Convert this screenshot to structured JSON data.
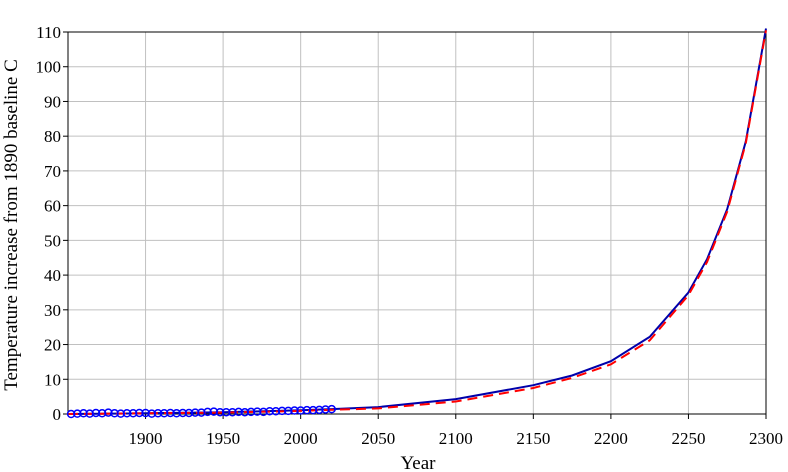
{
  "chart_data": {
    "type": "line",
    "title": "",
    "xlabel": "Year",
    "ylabel": "Temperature increase from  1890 baseline C",
    "xlim": [
      1850,
      2300
    ],
    "ylim": [
      0,
      110
    ],
    "x_ticks": [
      1900,
      1950,
      2000,
      2050,
      2100,
      2150,
      2200,
      2250,
      2300
    ],
    "y_ticks": [
      0,
      10,
      20,
      30,
      40,
      50,
      60,
      70,
      80,
      90,
      100,
      110
    ],
    "grid": true,
    "legend": "none",
    "series": [
      {
        "kind": "scatter",
        "color": "#0000ff",
        "marker": "open-circle",
        "x": [
          1852,
          1856,
          1860,
          1864,
          1868,
          1872,
          1876,
          1880,
          1884,
          1888,
          1892,
          1896,
          1900,
          1904,
          1908,
          1912,
          1916,
          1920,
          1924,
          1928,
          1932,
          1936,
          1940,
          1944,
          1948,
          1952,
          1956,
          1960,
          1964,
          1968,
          1972,
          1976,
          1980,
          1984,
          1988,
          1992,
          1996,
          2000,
          2004,
          2008,
          2012,
          2016,
          2020
        ],
        "y": [
          0.0,
          0.1,
          0.2,
          0.1,
          0.3,
          0.2,
          0.4,
          0.2,
          0.1,
          0.2,
          0.2,
          0.3,
          0.3,
          0.1,
          0.2,
          0.2,
          0.3,
          0.2,
          0.3,
          0.3,
          0.4,
          0.4,
          0.6,
          0.7,
          0.5,
          0.5,
          0.5,
          0.6,
          0.5,
          0.6,
          0.7,
          0.6,
          0.8,
          0.8,
          0.9,
          0.9,
          1.0,
          1.0,
          1.1,
          1.1,
          1.2,
          1.3,
          1.4
        ]
      },
      {
        "kind": "line",
        "color": "#0000aa",
        "dash": "solid",
        "x": [
          1850,
          1900,
          1950,
          2000,
          2020,
          2050,
          2100,
          2150,
          2175,
          2200,
          2225,
          2250,
          2262,
          2275,
          2287,
          2300
        ],
        "y": [
          0.0,
          0.2,
          0.5,
          1.1,
          1.4,
          2.0,
          4.3,
          8.3,
          11.1,
          15.2,
          22.2,
          35.0,
          44.6,
          59.0,
          78.5,
          111.0
        ]
      },
      {
        "kind": "line",
        "color": "#ff0000",
        "dash": "dashed",
        "x": [
          1850,
          1900,
          1950,
          2000,
          2020,
          2050,
          2100,
          2150,
          2175,
          2200,
          2225,
          2250,
          2262,
          2275,
          2287,
          2300
        ],
        "y": [
          0.0,
          0.2,
          0.4,
          0.9,
          1.2,
          1.6,
          3.6,
          7.5,
          10.4,
          14.3,
          21.2,
          34.2,
          43.8,
          58.3,
          78.0,
          110.5
        ]
      }
    ]
  }
}
